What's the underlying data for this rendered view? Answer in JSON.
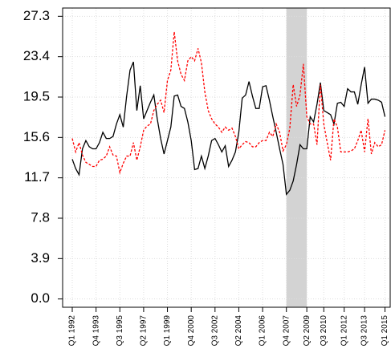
{
  "chart_data": {
    "type": "line",
    "categories": [
      "Q1 1992",
      null,
      null,
      null,
      null,
      null,
      null,
      "Q4 1993",
      null,
      null,
      null,
      null,
      null,
      null,
      "Q3 1995",
      null,
      null,
      null,
      null,
      null,
      null,
      "Q2 1997",
      null,
      null,
      null,
      null,
      null,
      null,
      "Q1 1999",
      null,
      null,
      null,
      null,
      null,
      null,
      "Q4 2000",
      null,
      null,
      null,
      null,
      null,
      null,
      "Q3 2002",
      null,
      null,
      null,
      null,
      null,
      null,
      "Q2 2004",
      null,
      null,
      null,
      null,
      null,
      null,
      "Q1 2006",
      null,
      null,
      null,
      null,
      null,
      null,
      "Q4 2007",
      null,
      null,
      null,
      null,
      null,
      "Q2 2009",
      null,
      null,
      null,
      null,
      "Q3 2010",
      null,
      null,
      null,
      null,
      null,
      "Q1 2012",
      null,
      null,
      null,
      null,
      null,
      "Q3 2013",
      null,
      null,
      null,
      null,
      null,
      "Q1 2015"
    ],
    "series": [
      {
        "color": "#000000",
        "dash": "solid",
        "values": [
          13.5,
          12.6,
          12.0,
          14.5,
          15.3,
          14.7,
          14.5,
          14.5,
          15.1,
          16.1,
          15.5,
          15.5,
          15.7,
          16.9,
          17.8,
          16.6,
          19.6,
          22.1,
          22.9,
          18.2,
          20.6,
          17.4,
          18.2,
          19.0,
          19.7,
          17.4,
          15.5,
          14.0,
          15.3,
          16.6,
          19.6,
          19.7,
          18.6,
          18.4,
          17.1,
          15.3,
          12.5,
          12.6,
          13.8,
          12.6,
          13.8,
          15.3,
          15.5,
          14.9,
          14.2,
          14.8,
          12.8,
          13.4,
          14.2,
          16.1,
          19.4,
          19.7,
          21.0,
          19.6,
          18.4,
          18.4,
          20.5,
          20.6,
          19.2,
          17.6,
          16.1,
          14.5,
          13.0,
          10.1,
          10.5,
          11.4,
          13.0,
          14.9,
          14.5,
          14.5,
          17.6,
          17.1,
          18.8,
          20.9,
          18.2,
          18.0,
          17.8,
          16.9,
          18.9,
          19.0,
          18.6,
          20.3,
          20.0,
          20.0,
          18.8,
          20.7,
          22.4,
          18.9,
          19.3,
          19.3,
          19.2,
          19.0,
          17.6
        ]
      },
      {
        "color": "#ff0000",
        "dash": "dashed",
        "values": [
          15.5,
          14.2,
          15.1,
          13.9,
          13.2,
          13.0,
          12.8,
          12.8,
          13.4,
          13.5,
          13.8,
          14.7,
          13.9,
          13.8,
          12.2,
          13.1,
          13.8,
          13.8,
          15.1,
          13.4,
          14.7,
          16.3,
          16.7,
          16.9,
          18.2,
          18.8,
          19.2,
          18.0,
          21.1,
          22.1,
          25.8,
          23.0,
          21.7,
          21.1,
          23.0,
          23.4,
          23.0,
          24.2,
          22.8,
          20.0,
          18.2,
          17.4,
          16.9,
          16.6,
          16.1,
          16.6,
          16.3,
          16.5,
          15.7,
          14.5,
          14.9,
          15.2,
          15.1,
          14.7,
          14.7,
          15.1,
          15.3,
          15.3,
          16.1,
          15.7,
          16.9,
          16.1,
          14.3,
          14.9,
          16.5,
          20.7,
          18.6,
          19.7,
          22.7,
          17.6,
          16.9,
          16.9,
          14.9,
          20.7,
          16.9,
          15.1,
          13.4,
          17.4,
          16.6,
          14.2,
          14.2,
          14.2,
          14.3,
          14.5,
          15.3,
          16.3,
          14.2,
          17.4,
          14.0,
          15.1,
          14.7,
          14.9,
          16.3
        ]
      }
    ],
    "shade": [
      "Q4 2007",
      "Q2 2009"
    ],
    "shade_color": "#d3d3d3",
    "ylim": [
      -0.8,
      28.1
    ],
    "yticks": [
      {
        "value": 0,
        "label": "0.0"
      },
      3.9,
      7.8,
      11.7,
      15.6,
      19.5,
      23.4,
      27.3
    ],
    "grid": true
  }
}
